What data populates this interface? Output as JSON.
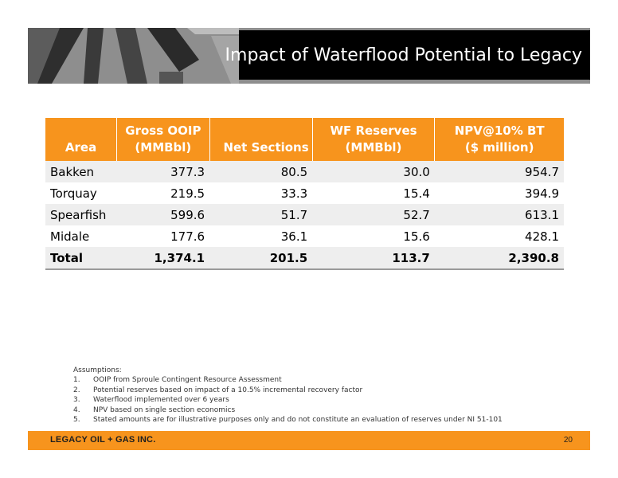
{
  "slide": {
    "title": "Impact of Waterflood Potential to Legacy",
    "page_number": "20",
    "footer_logo": "LEGACY OIL + GAS INC."
  },
  "table": {
    "headers": {
      "area": "Area",
      "ooip_1": "Gross OOIP",
      "ooip_2": "(MMBbl)",
      "sections": "Net Sections",
      "wf_1": "WF Reserves",
      "wf_2": "(MMBbl)",
      "npv_1": "NPV@10% BT",
      "npv_2": "($ million)"
    },
    "rows": [
      {
        "area": "Bakken",
        "ooip": "377.3",
        "sections": "80.5",
        "wf": "30.0",
        "npv": "954.7"
      },
      {
        "area": "Torquay",
        "ooip": "219.5",
        "sections": "33.3",
        "wf": "15.4",
        "npv": "394.9"
      },
      {
        "area": "Spearfish",
        "ooip": "599.6",
        "sections": "51.7",
        "wf": "52.7",
        "npv": "613.1"
      },
      {
        "area": "Midale",
        "ooip": "177.6",
        "sections": "36.1",
        "wf": "15.6",
        "npv": "428.1"
      }
    ],
    "total": {
      "area": "Total",
      "ooip": "1,374.1",
      "sections": "201.5",
      "wf": "113.7",
      "npv": "2,390.8"
    }
  },
  "assumptions": {
    "heading": "Assumptions:",
    "items": [
      {
        "num": "1.",
        "text": "OOIP from Sproule Contingent Resource Assessment"
      },
      {
        "num": "2.",
        "text": "Potential reserves based on impact of a 10.5% incremental recovery factor"
      },
      {
        "num": "3.",
        "text": "Waterflood implemented over 6 years"
      },
      {
        "num": "4.",
        "text": "NPV based on single section economics"
      },
      {
        "num": "5.",
        "text": "Stated amounts are for illustrative purposes only and do not constitute an evaluation of reserves under NI 51-101"
      }
    ]
  },
  "colors": {
    "accent": "#f7941d",
    "title_bg": "#000000",
    "row_shade": "#eeeeee"
  }
}
